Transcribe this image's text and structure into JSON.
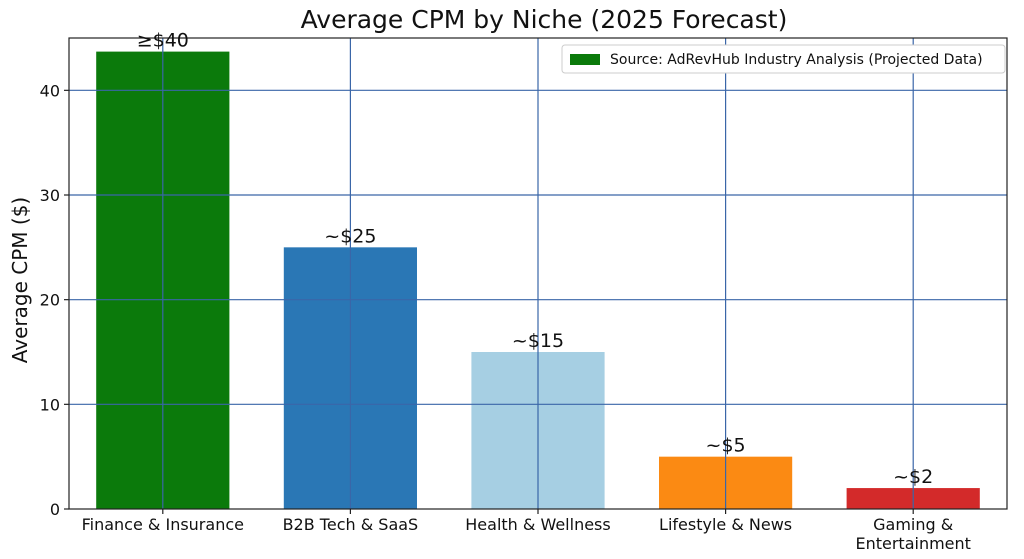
{
  "chart_data": {
    "type": "bar",
    "title": "Average CPM by Niche (2025 Forecast)",
    "xlabel": "",
    "ylabel": "Average CPM ($)",
    "ylim": [
      0,
      45
    ],
    "yticks": [
      0,
      10,
      20,
      30,
      40
    ],
    "grid": true,
    "legend": {
      "placement": "top-right",
      "label": "Source: AdRevHub Industry Analysis (Projected Data)",
      "color": "#0b7a0b"
    },
    "categories": [
      [
        "Finance & Insurance"
      ],
      [
        "B2B Tech & SaaS"
      ],
      [
        "Health & Wellness"
      ],
      [
        "Lifestyle & News"
      ],
      [
        "Gaming &",
        "Entertainment"
      ]
    ],
    "values": [
      43.7,
      25,
      15,
      5,
      2
    ],
    "data_labels": [
      "≥$40",
      "~$25",
      "~$15",
      "~$5",
      "~$2"
    ],
    "colors": [
      "#0b7a0b",
      "#2a77b5",
      "#a6cfe3",
      "#fb8a13",
      "#d32a2a"
    ],
    "grid_color": "#3a66a8"
  }
}
